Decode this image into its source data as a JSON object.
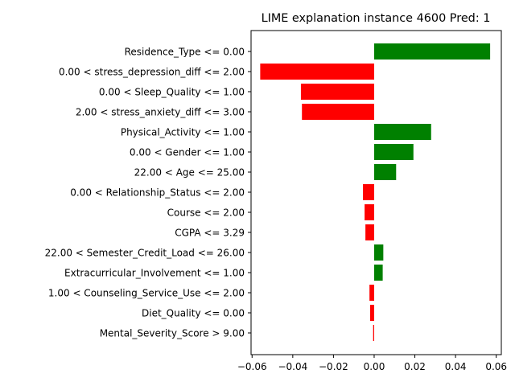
{
  "chart_data": {
    "type": "bar",
    "orientation": "horizontal",
    "title": "LIME explanation instance 4600 Pred: 1",
    "xlabel": "",
    "ylabel": "",
    "xlim": [
      -0.0605,
      0.0625
    ],
    "xticks": [
      -0.06,
      -0.04,
      -0.02,
      0.0,
      0.02,
      0.04,
      0.06
    ],
    "xtick_labels": [
      "−0.06",
      "−0.04",
      "−0.02",
      "0.00",
      "0.02",
      "0.04",
      "0.06"
    ],
    "grid": false,
    "positive_color": "#008000",
    "negative_color": "#ff0000",
    "categories": [
      "Residence_Type <= 0.00",
      "0.00 < stress_depression_diff <= 2.00",
      "0.00 < Sleep_Quality <= 1.00",
      "2.00 < stress_anxiety_diff <= 3.00",
      "Physical_Activity <= 1.00",
      "0.00 < Gender <= 1.00",
      "22.00 < Age <= 25.00",
      "0.00 < Relationship_Status <= 2.00",
      "Course <= 2.00",
      "CGPA <= 3.29",
      "22.00 < Semester_Credit_Load <= 26.00",
      "Extracurricular_Involvement <= 1.00",
      "1.00 < Counseling_Service_Use <= 2.00",
      "Diet_Quality <= 0.00",
      "Mental_Severity_Score > 9.00"
    ],
    "values": [
      0.057,
      -0.056,
      -0.036,
      -0.0355,
      0.028,
      0.0193,
      0.0108,
      -0.0055,
      -0.0047,
      -0.0043,
      0.0045,
      0.0042,
      -0.0023,
      -0.002,
      -0.0005
    ]
  }
}
